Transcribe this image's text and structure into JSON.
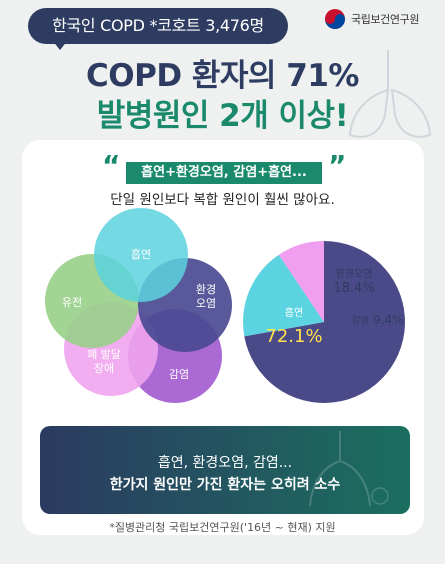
{
  "header": {
    "cohort_label": "한국인 COPD *코호트 3,476명",
    "agency_name": "국립보건연구원",
    "title_line1": "COPD 환자의 71%",
    "title_line2": "발병원인 2개 이상!"
  },
  "card": {
    "quote_open": "“",
    "quote_close": "”",
    "highlight": "흡연+환경오염, 감염+흡연...",
    "subtitle": "단일 원인보다 복합 원인이 훨씬 많아요."
  },
  "venn": {
    "circles": [
      {
        "label": "흡연",
        "color": "#5cd2de"
      },
      {
        "label": "유전",
        "color": "#98cf88"
      },
      {
        "label": "환경\n오염",
        "color": "#4a4a92"
      },
      {
        "label": "폐 발달\n장애",
        "color": "#f0a4ee"
      },
      {
        "label": "감염",
        "color": "#a45cd0"
      }
    ]
  },
  "chart_data": {
    "type": "pie",
    "title": "",
    "slices": [
      {
        "name": "흡연",
        "value": 72.1,
        "color": "#4a4a88"
      },
      {
        "name": "환경오염",
        "value": 18.4,
        "color": "#5cd3e0"
      },
      {
        "name": "감염",
        "value": 9.4,
        "color": "#f09eef"
      }
    ],
    "labels": [
      {
        "name": "흡연",
        "value_text": "72.1%"
      },
      {
        "name": "환경오염",
        "value_text": "18.4%"
      },
      {
        "name": "감염",
        "value_text": "9.4%"
      }
    ]
  },
  "summary": {
    "line1": "흡연, 환경오염, 감염...",
    "line2": "한가지 원인만 가진 환자는 오히려 소수"
  },
  "footnote": "*질병관리청 국립보건연구원('16년 ~ 현재) 지원"
}
